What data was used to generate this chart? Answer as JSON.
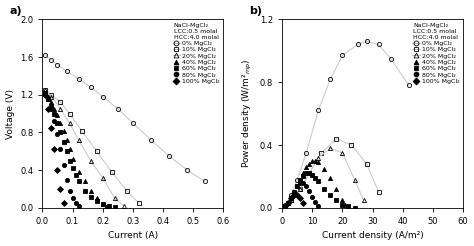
{
  "panel_a": {
    "title": "a)",
    "xlabel": "Current (A)",
    "ylabel": "Voltage (V)",
    "xlim": [
      0,
      0.6
    ],
    "ylim": [
      0,
      2.0
    ],
    "xticks": [
      0,
      0.1,
      0.2,
      0.3,
      0.4,
      0.5,
      0.6
    ],
    "yticks": [
      0,
      0.4,
      0.8,
      1.2,
      1.6,
      2.0
    ],
    "legend_text": [
      "NaCl-MgCl₂",
      "LCC:0.5 molal",
      "HCC:4.0 molal"
    ],
    "series": [
      {
        "label": "0% MgCl₂",
        "marker": "o",
        "filled": false,
        "x": [
          0.01,
          0.03,
          0.05,
          0.08,
          0.12,
          0.16,
          0.2,
          0.25,
          0.3,
          0.36,
          0.42,
          0.48,
          0.54
        ],
        "y": [
          1.62,
          1.57,
          1.52,
          1.45,
          1.37,
          1.28,
          1.18,
          1.05,
          0.9,
          0.72,
          0.55,
          0.4,
          0.28
        ]
      },
      {
        "label": "10% MgCl₂",
        "marker": "s",
        "filled": false,
        "x": [
          0.01,
          0.03,
          0.06,
          0.09,
          0.13,
          0.18,
          0.23,
          0.28,
          0.32
        ],
        "y": [
          1.25,
          1.2,
          1.12,
          1.0,
          0.82,
          0.6,
          0.38,
          0.18,
          0.05
        ]
      },
      {
        "label": "20% MgCl₂",
        "marker": "^",
        "filled": false,
        "x": [
          0.01,
          0.03,
          0.06,
          0.09,
          0.12,
          0.16,
          0.2,
          0.24,
          0.27
        ],
        "y": [
          1.25,
          1.18,
          1.05,
          0.9,
          0.72,
          0.5,
          0.32,
          0.1,
          0.02
        ]
      },
      {
        "label": "40% MgCl₂",
        "marker": "^",
        "filled": true,
        "x": [
          0.01,
          0.02,
          0.03,
          0.04,
          0.05,
          0.06,
          0.07,
          0.08,
          0.09,
          0.1,
          0.12,
          0.14,
          0.16,
          0.18,
          0.2,
          0.21
        ],
        "y": [
          1.22,
          1.18,
          1.12,
          1.05,
          0.98,
          0.9,
          0.82,
          0.72,
          0.62,
          0.52,
          0.38,
          0.28,
          0.18,
          0.1,
          0.04,
          0.01
        ]
      },
      {
        "label": "60% MgCl₂",
        "marker": "s",
        "filled": true,
        "x": [
          0.01,
          0.02,
          0.03,
          0.04,
          0.05,
          0.06,
          0.07,
          0.08,
          0.09,
          0.1,
          0.11,
          0.12,
          0.14,
          0.16,
          0.18,
          0.2,
          0.22,
          0.24
        ],
        "y": [
          1.22,
          1.15,
          1.08,
          1.0,
          0.9,
          0.8,
          0.7,
          0.6,
          0.5,
          0.42,
          0.35,
          0.28,
          0.18,
          0.12,
          0.07,
          0.04,
          0.02,
          0.01
        ]
      },
      {
        "label": "80% MgCl₂",
        "marker": "o",
        "filled": true,
        "x": [
          0.01,
          0.02,
          0.03,
          0.04,
          0.05,
          0.06,
          0.07,
          0.08,
          0.09,
          0.1,
          0.11,
          0.12
        ],
        "y": [
          1.22,
          1.15,
          1.05,
          0.92,
          0.78,
          0.62,
          0.45,
          0.3,
          0.18,
          0.1,
          0.05,
          0.02
        ]
      },
      {
        "label": "100% MgCl₂",
        "marker": "D",
        "filled": true,
        "x": [
          0.01,
          0.02,
          0.03,
          0.04,
          0.05,
          0.06,
          0.07
        ],
        "y": [
          1.2,
          1.05,
          0.85,
          0.62,
          0.4,
          0.2,
          0.05
        ]
      }
    ]
  },
  "panel_b": {
    "title": "b)",
    "xlabel": "Current density (A/m²)",
    "ylabel": "Power density (W/m²$_{mp}$)",
    "xlim": [
      0,
      60
    ],
    "ylim": [
      0,
      1.2
    ],
    "xticks": [
      0,
      10,
      20,
      30,
      40,
      50,
      60
    ],
    "yticks": [
      0,
      0.4,
      0.8,
      1.2
    ],
    "legend_text": [
      "NaCl-MgCl₂",
      "LCC:0.5 molal",
      "HCC:4.0 molal"
    ],
    "series": [
      {
        "label": "0% MgCl₂",
        "marker": "o",
        "filled": false,
        "x": [
          1,
          3,
          5,
          8,
          12,
          16,
          20,
          25,
          28,
          32,
          36,
          42
        ],
        "y": [
          0.02,
          0.08,
          0.18,
          0.35,
          0.62,
          0.82,
          0.97,
          1.04,
          1.06,
          1.04,
          0.95,
          0.78
        ]
      },
      {
        "label": "10% MgCl₂",
        "marker": "s",
        "filled": false,
        "x": [
          1,
          3,
          6,
          9,
          13,
          18,
          23,
          28,
          32
        ],
        "y": [
          0.01,
          0.05,
          0.12,
          0.22,
          0.35,
          0.44,
          0.4,
          0.28,
          0.1
        ]
      },
      {
        "label": "20% MgCl₂",
        "marker": "^",
        "filled": false,
        "x": [
          1,
          3,
          6,
          9,
          12,
          16,
          20,
          24,
          27
        ],
        "y": [
          0.01,
          0.05,
          0.12,
          0.22,
          0.32,
          0.38,
          0.35,
          0.18,
          0.05
        ]
      },
      {
        "label": "40% MgCl₂",
        "marker": "^",
        "filled": true,
        "x": [
          1,
          2,
          3,
          4,
          5,
          6,
          7,
          8,
          9,
          10,
          11,
          12,
          14,
          16,
          18,
          20,
          21
        ],
        "y": [
          0.01,
          0.03,
          0.06,
          0.1,
          0.14,
          0.18,
          0.22,
          0.26,
          0.28,
          0.3,
          0.3,
          0.29,
          0.25,
          0.19,
          0.12,
          0.05,
          0.02
        ]
      },
      {
        "label": "60% MgCl₂",
        "marker": "s",
        "filled": true,
        "x": [
          1,
          2,
          3,
          4,
          5,
          6,
          7,
          8,
          9,
          10,
          11,
          12,
          14,
          16,
          18,
          20,
          22,
          24
        ],
        "y": [
          0.01,
          0.03,
          0.06,
          0.1,
          0.14,
          0.18,
          0.2,
          0.22,
          0.22,
          0.21,
          0.19,
          0.17,
          0.12,
          0.08,
          0.05,
          0.02,
          0.01,
          0.0
        ]
      },
      {
        "label": "80% MgCl₂",
        "marker": "o",
        "filled": true,
        "x": [
          1,
          2,
          3,
          4,
          5,
          6,
          7,
          8,
          9,
          10,
          11,
          12
        ],
        "y": [
          0.01,
          0.03,
          0.06,
          0.1,
          0.14,
          0.16,
          0.16,
          0.14,
          0.11,
          0.07,
          0.04,
          0.01
        ]
      },
      {
        "label": "100% MgCl₂",
        "marker": "D",
        "filled": true,
        "x": [
          1,
          2,
          3,
          4,
          5,
          6,
          7
        ],
        "y": [
          0.01,
          0.03,
          0.06,
          0.08,
          0.08,
          0.06,
          0.03
        ]
      }
    ]
  }
}
